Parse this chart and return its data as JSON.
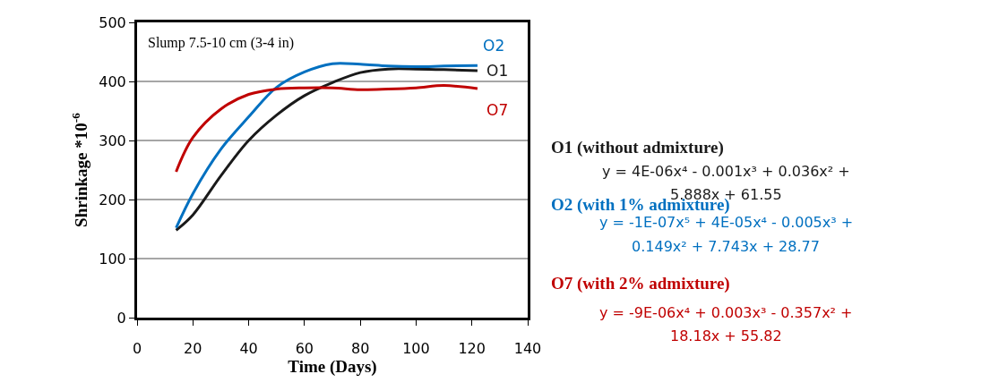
{
  "chart_data": {
    "type": "line",
    "xlabel": "Time (Days)",
    "ylabel": "Shrinkage *10$^{-6}$",
    "x": [
      14,
      20,
      30,
      40,
      50,
      60,
      70,
      80,
      90,
      100,
      110,
      122
    ],
    "series": [
      {
        "name": "O1",
        "color": "#1a1a1a",
        "values": [
          148,
          174,
          240,
          300,
          343,
          376,
          398,
          415,
          421,
          421,
          420,
          418
        ]
      },
      {
        "name": "O2",
        "color": "#0070c0",
        "values": [
          152,
          210,
          285,
          340,
          390,
          416,
          430,
          429,
          426,
          425,
          426,
          427
        ]
      },
      {
        "name": "O7",
        "color": "#c00000",
        "values": [
          247,
          305,
          353,
          378,
          387,
          389,
          389,
          386,
          387,
          389,
          393,
          388
        ]
      }
    ],
    "xlim": [
      0,
      140
    ],
    "xticks": [
      0,
      20,
      40,
      60,
      80,
      100,
      120,
      140
    ],
    "ylim": [
      0,
      500
    ],
    "yticks": [
      0,
      100,
      200,
      300,
      400,
      500
    ],
    "grid": "y",
    "legend": false,
    "marker": "none",
    "line_style": "solid",
    "annotations": [
      "Slump 7.5-10 cm (3-4 in)",
      "O1 (without admixture)",
      "y = 4E-06x⁴ - 0.001x³ + 0.036x² +",
      "5.888x + 61.55",
      "O2 (with 1% admixture)",
      "y = -1E-07x⁵ + 4E-05x⁴ - 0.005x³ +",
      "0.149x² + 7.743x + 28.77",
      "O7 (with 2% admixture)",
      "y = -9E-06x⁴ + 0.003x³ - 0.357x² +",
      "18.18x + 55.82"
    ]
  }
}
